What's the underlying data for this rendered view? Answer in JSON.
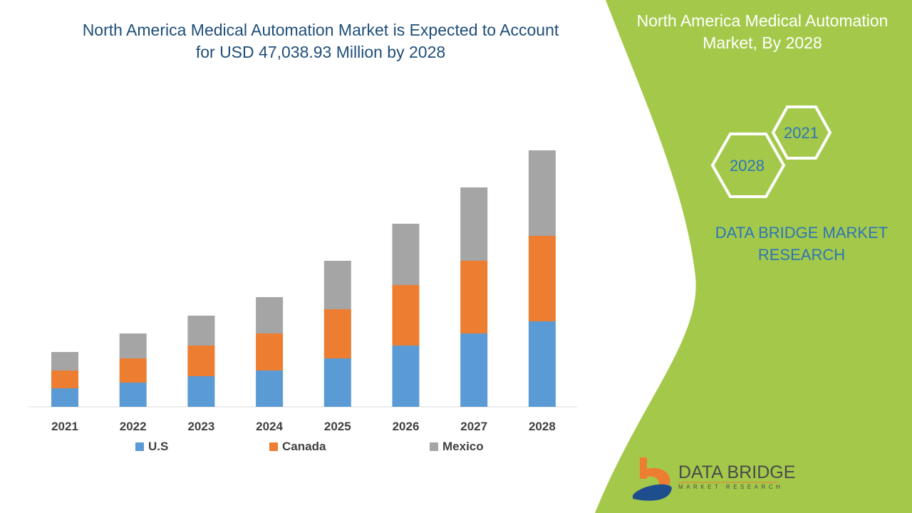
{
  "header": {
    "title": "North America Medical Automation Market is Expected to Account for USD 47,038.93 Million by 2028",
    "side_title": "North America Medical Automation Market, By 2028"
  },
  "side_panel": {
    "hex_years": [
      "2021",
      "2028"
    ],
    "brand_text": "DATA BRIDGE MARKET RESEARCH",
    "logo_text": "DATA BRIDGE",
    "logo_subtext": "MARKET RESEARCH",
    "panel_color": "#a4c94a"
  },
  "chart_data": {
    "type": "bar",
    "stacked": true,
    "categories": [
      "2021",
      "2022",
      "2023",
      "2024",
      "2025",
      "2026",
      "2027",
      "2028"
    ],
    "series": [
      {
        "name": "U.S",
        "color": "#5b9bd5",
        "values": [
          26,
          34,
          43,
          51,
          68,
          86,
          103,
          120
        ]
      },
      {
        "name": "Canada",
        "color": "#ed7d31",
        "values": [
          25,
          34,
          43,
          52,
          69,
          85,
          102,
          120
        ]
      },
      {
        "name": "Mexico",
        "color": "#a5a5a5",
        "values": [
          26,
          35,
          42,
          51,
          68,
          86,
          103,
          120
        ]
      }
    ],
    "ylim": [
      0,
      360
    ],
    "grid": false,
    "legend": "bottom",
    "title": "North America Medical Automation Market is Expected to Account for USD 47,038.93 Million by 2028"
  }
}
